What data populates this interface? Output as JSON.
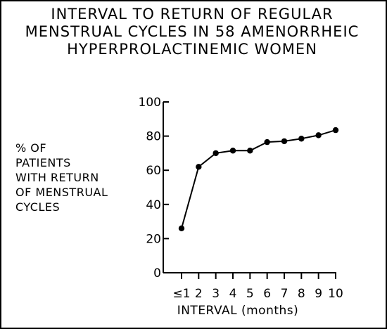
{
  "chart_data": {
    "type": "line",
    "title_lines": [
      "INTERVAL TO RETURN OF REGULAR",
      "MENSTRUAL CYCLES IN 58 AMENORRHEIC",
      "HYPERPROLACTINEMIC WOMEN"
    ],
    "ylabel_lines": [
      "% OF",
      "PATIENTS",
      "WITH RETURN",
      "OF MENSTRUAL",
      "CYCLES"
    ],
    "xlabel": "INTERVAL (months)",
    "x": [
      1,
      2,
      3,
      4,
      5,
      6,
      7,
      8,
      9,
      10
    ],
    "x_tick_labels": [
      "≤1",
      "2",
      "3",
      "4",
      "5",
      "6",
      "7",
      "8",
      "9",
      "10"
    ],
    "y_ticks": [
      0,
      20,
      40,
      60,
      80,
      100
    ],
    "y_tick_labels": [
      "0",
      "20",
      "40",
      "60",
      "80",
      "100"
    ],
    "ylim": [
      0,
      100
    ],
    "xlim": [
      1,
      10
    ],
    "series": [
      {
        "values": [
          26,
          62,
          70,
          71.5,
          71.5,
          76.5,
          77,
          78.5,
          80.5,
          83.5
        ]
      }
    ],
    "grid": false,
    "legend": "none",
    "colors": {
      "line": "#000000",
      "marker": "#000000"
    }
  }
}
